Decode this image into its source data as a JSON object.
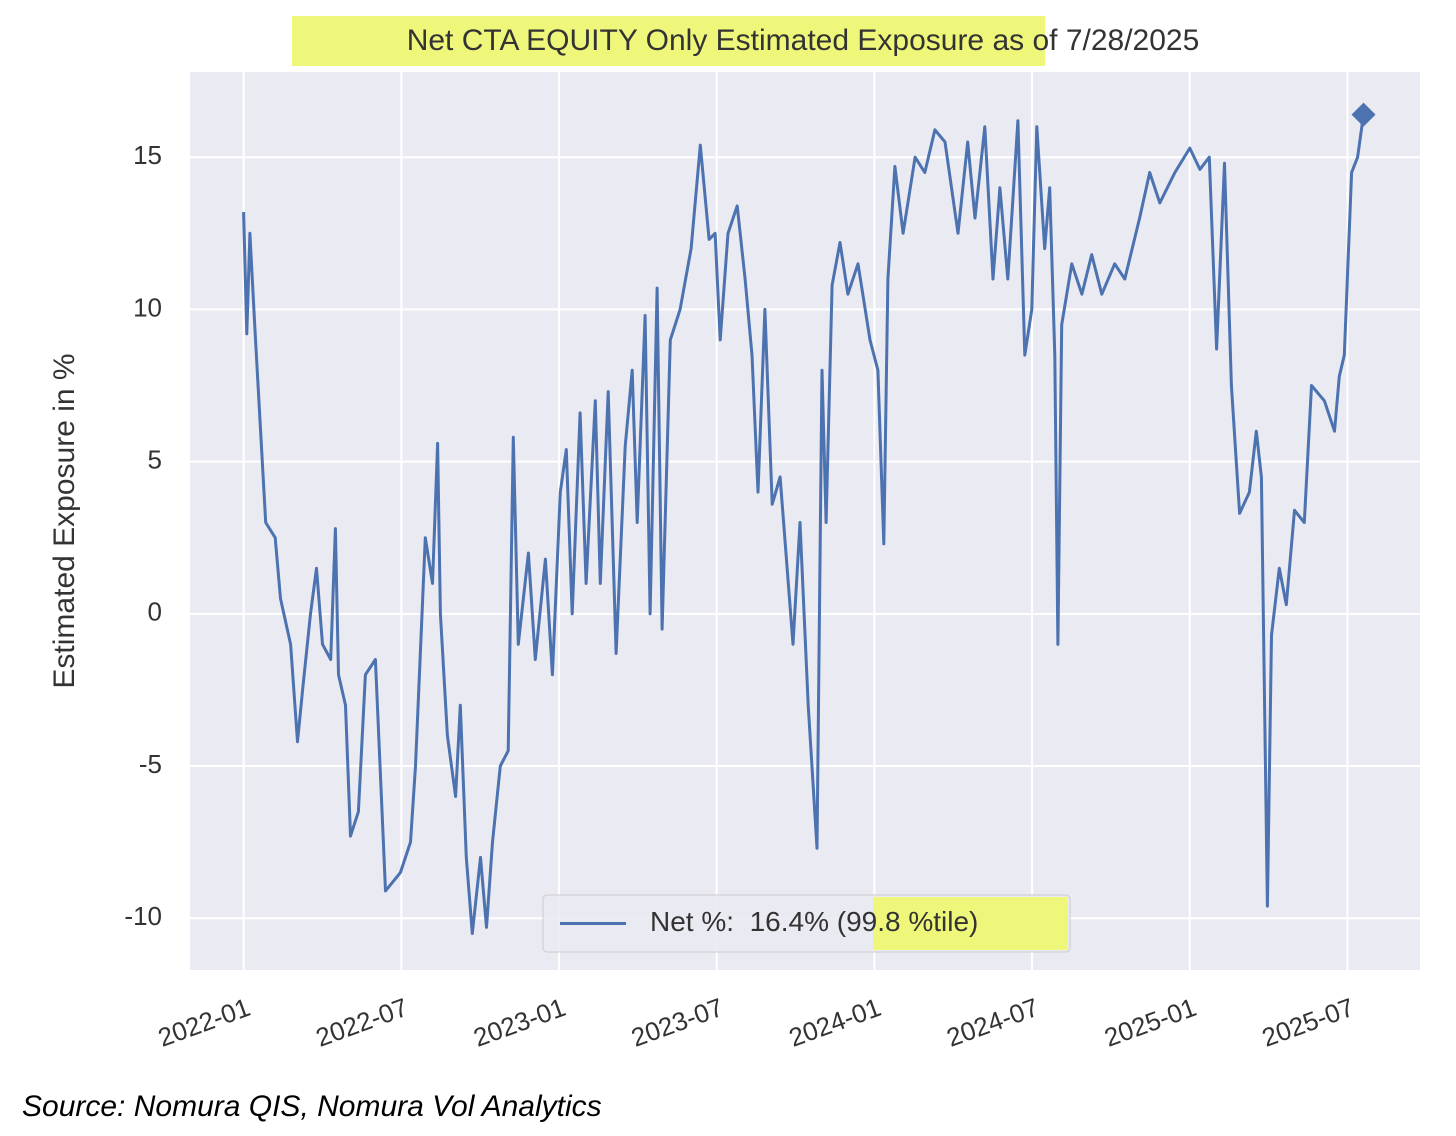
{
  "chart_data": {
    "type": "line",
    "title": "Net CTA EQUITY Only Estimated Exposure as of 7/28/2025",
    "ylabel": "Estimated Exposure in %",
    "source": "Source: Nomura QIS, Nomura Vol Analytics",
    "xlim": [
      2021.83,
      2025.73
    ],
    "ylim": [
      -11.7,
      17.8
    ],
    "xticks": [
      {
        "value": 2022.0,
        "label": "2022-01"
      },
      {
        "value": 2022.5,
        "label": "2022-07"
      },
      {
        "value": 2023.0,
        "label": "2023-01"
      },
      {
        "value": 2023.5,
        "label": "2023-07"
      },
      {
        "value": 2024.0,
        "label": "2024-01"
      },
      {
        "value": 2024.5,
        "label": "2024-07"
      },
      {
        "value": 2025.0,
        "label": "2025-01"
      },
      {
        "value": 2025.5,
        "label": "2025-07"
      }
    ],
    "yticks": [
      -10,
      -5,
      0,
      5,
      10,
      15
    ],
    "grid": true,
    "legend": "lower center",
    "x": [
      2022.0,
      2022.01,
      2022.02,
      2022.035,
      2022.054,
      2022.07,
      2022.1,
      2022.117,
      2022.149,
      2022.171,
      2022.187,
      2022.212,
      2022.231,
      2022.25,
      2022.276,
      2022.291,
      2022.301,
      2022.323,
      2022.339,
      2022.364,
      2022.386,
      2022.418,
      2022.45,
      2022.497,
      2022.529,
      2022.545,
      2022.576,
      2022.599,
      2022.615,
      2022.624,
      2022.646,
      2022.672,
      2022.687,
      2022.706,
      2022.725,
      2022.751,
      2022.77,
      2022.789,
      2022.814,
      2022.839,
      2022.855,
      2022.871,
      2022.903,
      2022.925,
      2022.957,
      2022.979,
      2023.004,
      2023.023,
      2023.042,
      2023.067,
      2023.086,
      2023.115,
      2023.131,
      2023.156,
      2023.181,
      2023.21,
      2023.232,
      2023.248,
      2023.273,
      2023.289,
      2023.311,
      2023.327,
      2023.353,
      2023.384,
      2023.419,
      2023.448,
      2023.476,
      2023.495,
      2023.511,
      2023.536,
      2023.565,
      2023.59,
      2023.612,
      2023.631,
      2023.653,
      2023.676,
      2023.701,
      2023.742,
      2023.764,
      2023.79,
      2023.818,
      2023.834,
      2023.847,
      2023.866,
      2023.891,
      2023.916,
      2023.948,
      2023.986,
      2024.011,
      2024.03,
      2024.043,
      2024.065,
      2024.091,
      2024.129,
      2024.16,
      2024.192,
      2024.224,
      2024.265,
      2024.296,
      2024.319,
      2024.35,
      2024.376,
      2024.398,
      2024.423,
      2024.455,
      2024.477,
      2024.499,
      2024.515,
      2024.54,
      2024.556,
      2024.572,
      2024.582,
      2024.594,
      2024.626,
      2024.658,
      2024.689,
      2024.721,
      2024.762,
      2024.794,
      2024.841,
      2024.873,
      2024.905,
      2024.953,
      2025.0,
      2025.032,
      2025.062,
      2025.085,
      2025.11,
      2025.132,
      2025.158,
      2025.189,
      2025.211,
      2025.227,
      2025.246,
      2025.259,
      2025.284,
      2025.306,
      2025.332,
      2025.363,
      2025.386,
      2025.427,
      2025.459,
      2025.474,
      2025.49,
      2025.513,
      2025.532,
      2025.551
    ],
    "series": [
      {
        "name": "Net %:  16.4% (99.8 %tile)",
        "color": "#4c72b0",
        "values": [
          13.2,
          9.2,
          12.5,
          9.5,
          6,
          3,
          2.5,
          0.5,
          -1,
          -4.2,
          -2.5,
          0,
          1.5,
          -1,
          -1.5,
          2.8,
          -2,
          -3,
          -7.3,
          -6.5,
          -2,
          -1.5,
          -9.1,
          -8.5,
          -7.5,
          -5,
          2.5,
          1,
          5.6,
          0,
          -4,
          -6,
          -3,
          -8,
          -10.5,
          -8,
          -10.3,
          -7.5,
          -5,
          -4.5,
          5.8,
          -1,
          2,
          -1.5,
          1.8,
          -2,
          4,
          5.4,
          0,
          6.6,
          1,
          7,
          1,
          7.3,
          -1.3,
          5.5,
          8,
          3,
          9.8,
          0,
          10.7,
          -0.5,
          9,
          10,
          12,
          15.4,
          12.3,
          12.5,
          9,
          12.5,
          13.4,
          11,
          8.5,
          4,
          10,
          3.6,
          4.5,
          -1,
          3,
          -3,
          -7.7,
          8,
          3,
          10.8,
          12.2,
          10.5,
          11.5,
          9,
          8,
          2.3,
          11,
          14.7,
          12.5,
          15,
          14.5,
          15.9,
          15.5,
          12.5,
          15.5,
          13,
          16,
          11,
          14,
          11,
          16.2,
          8.5,
          10,
          16,
          12,
          14,
          8.5,
          -1,
          9.5,
          11.5,
          10.5,
          11.8,
          10.5,
          11.5,
          11,
          13,
          14.5,
          13.5,
          14.5,
          15.3,
          14.6,
          15,
          8.7,
          14.8,
          7.5,
          3.3,
          4,
          6,
          4.5,
          -9.6,
          -0.7,
          1.5,
          0.3,
          3.4,
          3,
          7.5,
          7,
          6,
          7.8,
          8.5,
          14.5,
          15,
          16.4
        ]
      }
    ]
  }
}
